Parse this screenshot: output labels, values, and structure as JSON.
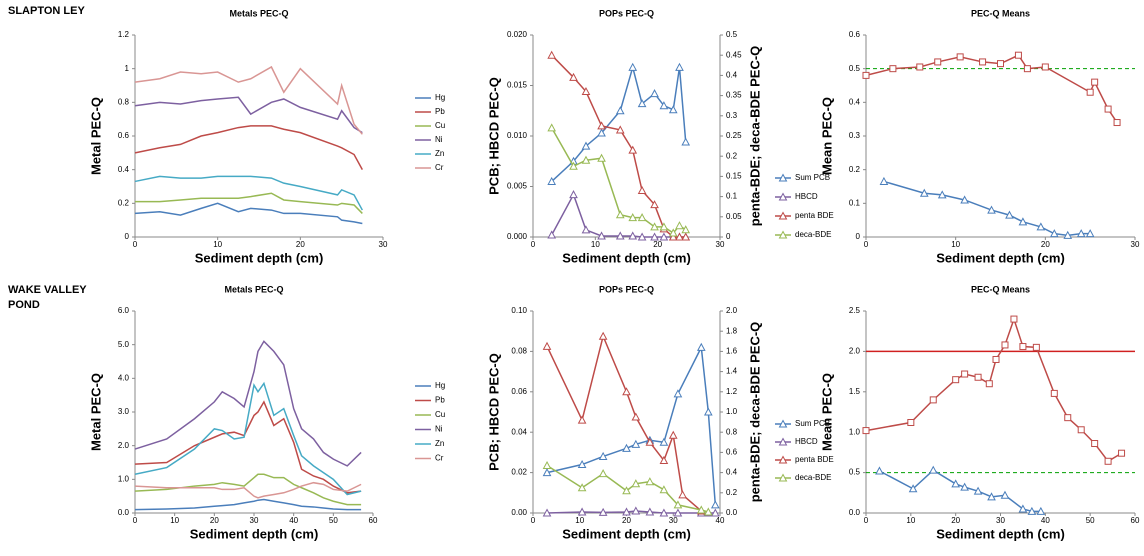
{
  "row_labels": [
    "SLAPTON LEY",
    "WAKE VALLEY POND"
  ],
  "chart_data": [
    {
      "type": "line",
      "title": "Metals PEC-Q",
      "xlabel": "Sediment depth (cm)",
      "ylabel": "Metal PEC-Q",
      "xlim": [
        0,
        30
      ],
      "xticks": [
        0,
        10,
        20,
        30
      ],
      "ylim": [
        0,
        1.2
      ],
      "yticks": [
        0,
        0.2,
        0.4,
        0.6,
        0.8,
        1,
        1.2
      ],
      "x": [
        0,
        3,
        5.5,
        8,
        10,
        12.5,
        14,
        16.5,
        18,
        20,
        24.5,
        25,
        26.5,
        27.5
      ],
      "series": [
        {
          "name": "Hg",
          "color": "#4a7ebb",
          "values": [
            0.14,
            0.15,
            0.13,
            0.17,
            0.2,
            0.15,
            0.17,
            0.16,
            0.14,
            0.14,
            0.12,
            0.1,
            0.09,
            0.08
          ]
        },
        {
          "name": "Pb",
          "color": "#be4b48",
          "values": [
            0.5,
            0.53,
            0.55,
            0.6,
            0.62,
            0.65,
            0.66,
            0.66,
            0.64,
            0.62,
            0.54,
            0.53,
            0.49,
            0.4
          ]
        },
        {
          "name": "Cu",
          "color": "#98b954",
          "values": [
            0.21,
            0.21,
            0.22,
            0.23,
            0.23,
            0.23,
            0.24,
            0.26,
            0.22,
            0.21,
            0.19,
            0.2,
            0.19,
            0.14
          ]
        },
        {
          "name": "Ni",
          "color": "#7d60a0",
          "values": [
            0.78,
            0.8,
            0.79,
            0.81,
            0.82,
            0.83,
            0.73,
            0.8,
            0.82,
            0.77,
            0.7,
            0.75,
            0.65,
            0.62
          ]
        },
        {
          "name": "Zn",
          "color": "#46aac5",
          "values": [
            0.33,
            0.36,
            0.35,
            0.35,
            0.36,
            0.36,
            0.36,
            0.35,
            0.32,
            0.3,
            0.25,
            0.28,
            0.25,
            0.16
          ]
        },
        {
          "name": "Cr",
          "color": "#d99694",
          "values": [
            0.92,
            0.94,
            0.98,
            0.97,
            0.98,
            0.92,
            0.94,
            1.01,
            0.86,
            1.0,
            0.79,
            0.9,
            0.67,
            0.61
          ]
        }
      ]
    },
    {
      "type": "line",
      "title": "POPs PEC-Q",
      "xlabel": "Sediment depth (cm)",
      "ylabel": "PCB; HBCD PEC-Q",
      "y2label": "penta-BDE; deca-BDE  PEC-Q",
      "xlim": [
        0,
        30
      ],
      "xticks": [
        0,
        10,
        20,
        30
      ],
      "ylim": [
        0,
        0.02
      ],
      "yticks": [
        {
          "value": 0,
          "label": "0.000"
        },
        {
          "value": 0.005,
          "label": "0.005"
        },
        {
          "value": 0.01,
          "label": "0.010"
        },
        {
          "value": 0.015,
          "label": "0.015"
        },
        {
          "value": 0.02,
          "label": "0.020"
        }
      ],
      "y2lim": [
        0,
        0.5
      ],
      "y2ticks": [
        0,
        0.05,
        0.1,
        0.15,
        0.2,
        0.25,
        0.3,
        0.35,
        0.4,
        0.45,
        0.5
      ],
      "series": [
        {
          "name": "Sum PCB",
          "color": "#4a7ebb",
          "marker": "triangle",
          "x": [
            3,
            6.5,
            8.5,
            11,
            14,
            16,
            17.5,
            19.5,
            21,
            22.5,
            23.5,
            24.5
          ],
          "values": [
            0.0055,
            0.0075,
            0.009,
            0.0103,
            0.0125,
            0.0168,
            0.0132,
            0.0142,
            0.013,
            0.0126,
            0.0168,
            0.0094
          ]
        },
        {
          "name": "HBCD",
          "color": "#7d60a0",
          "marker": "triangle",
          "x": [
            3,
            6.5,
            8.5,
            11,
            14,
            16,
            17.5,
            19.5,
            21,
            22.5,
            23.5,
            24.5
          ],
          "values": [
            0.0002,
            0.0042,
            0.0007,
            0.0001,
            0.0001,
            0.0001,
            0,
            0,
            0,
            0,
            0,
            0
          ]
        },
        {
          "name": "penta BDE",
          "color": "#be4b48",
          "marker": "triangle",
          "axis": "y2",
          "x": [
            3,
            6.5,
            8.5,
            11,
            14,
            16,
            17.5,
            19.5,
            21,
            22.5,
            23.5,
            24.5
          ],
          "values": [
            0.45,
            0.395,
            0.36,
            0.275,
            0.265,
            0.215,
            0.115,
            0.08,
            0.02,
            0,
            0,
            0
          ]
        },
        {
          "name": "deca-BDE",
          "color": "#98b954",
          "marker": "triangle",
          "axis": "y2",
          "x": [
            3,
            6.5,
            8.5,
            11,
            14,
            16,
            17.5,
            19.5,
            21,
            22.5,
            23.5,
            24.5
          ],
          "values": [
            0.27,
            0.175,
            0.19,
            0.195,
            0.055,
            0.048,
            0.048,
            0.025,
            0.025,
            0.01,
            0.028,
            0.018
          ]
        }
      ]
    },
    {
      "type": "line",
      "title": "PEC-Q Means",
      "xlabel": "Sediment depth (cm)",
      "ylabel": "Mean PEC-Q",
      "xlim": [
        0,
        30
      ],
      "xticks": [
        0,
        10,
        20,
        30
      ],
      "ylim": [
        0,
        0.6
      ],
      "yticks": [
        0,
        0.1,
        0.2,
        0.3,
        0.4,
        0.5,
        0.6
      ],
      "hlines": [
        {
          "value": 0.5,
          "color": "#00a000",
          "dash": true
        }
      ],
      "series": [
        {
          "color": "#be4b48",
          "marker": "square",
          "x": [
            0,
            3,
            6,
            8,
            10.5,
            13,
            15,
            17,
            18,
            20,
            25,
            25.5,
            27,
            28
          ],
          "values": [
            0.48,
            0.5,
            0.505,
            0.52,
            0.535,
            0.52,
            0.515,
            0.54,
            0.5,
            0.505,
            0.43,
            0.46,
            0.38,
            0.34
          ]
        },
        {
          "color": "#4a7ebb",
          "marker": "triangle",
          "x": [
            2,
            6.5,
            8.5,
            11,
            14,
            16,
            17.5,
            19.5,
            21,
            22.5,
            24,
            25
          ],
          "values": [
            0.165,
            0.13,
            0.125,
            0.11,
            0.08,
            0.065,
            0.045,
            0.03,
            0.01,
            0.005,
            0.01,
            0.01
          ]
        }
      ]
    },
    {
      "type": "line",
      "title": "Metals PEC-Q",
      "xlabel": "Sediment depth (cm)",
      "ylabel": "Metal PEC-Q",
      "xlim": [
        0,
        60
      ],
      "xticks": [
        0,
        10,
        20,
        30,
        40,
        50,
        60
      ],
      "ylim": [
        0,
        6
      ],
      "yticks": [
        {
          "value": 0,
          "label": "0.0"
        },
        {
          "value": 1,
          "label": "1.0"
        },
        {
          "value": 2,
          "label": "2.0"
        },
        {
          "value": 3,
          "label": "3.0"
        },
        {
          "value": 4,
          "label": "4.0"
        },
        {
          "value": 5,
          "label": "5.0"
        },
        {
          "value": 6,
          "label": "6.0"
        }
      ],
      "x": [
        0,
        8,
        15,
        20,
        22,
        25,
        27.5,
        30,
        31,
        32.5,
        35,
        37.5,
        40,
        42,
        45,
        47.5,
        50,
        53.5,
        57
      ],
      "series": [
        {
          "name": "Hg",
          "color": "#4a7ebb",
          "values": [
            0.1,
            0.12,
            0.15,
            0.2,
            0.22,
            0.25,
            0.3,
            0.35,
            0.38,
            0.4,
            0.35,
            0.3,
            0.25,
            0.2,
            0.18,
            0.15,
            0.12,
            0.1,
            0.1
          ]
        },
        {
          "name": "Pb",
          "color": "#be4b48",
          "values": [
            1.45,
            1.5,
            2.0,
            2.25,
            2.35,
            2.4,
            2.3,
            2.9,
            3.0,
            3.3,
            2.6,
            2.8,
            2.1,
            1.3,
            1.1,
            1.0,
            0.8,
            0.6,
            0.65
          ]
        },
        {
          "name": "Cu",
          "color": "#98b954",
          "values": [
            0.65,
            0.7,
            0.8,
            0.85,
            0.9,
            0.85,
            0.8,
            1.05,
            1.15,
            1.15,
            1.05,
            1.05,
            0.85,
            0.75,
            0.6,
            0.45,
            0.35,
            0.25,
            0.25
          ]
        },
        {
          "name": "Ni",
          "color": "#7d60a0",
          "values": [
            1.9,
            2.2,
            2.8,
            3.3,
            3.6,
            3.4,
            3.15,
            4.2,
            4.8,
            5.1,
            4.8,
            4.4,
            3.1,
            2.5,
            2.2,
            1.8,
            1.6,
            1.4,
            1.8
          ]
        },
        {
          "name": "Zn",
          "color": "#46aac5",
          "values": [
            1.15,
            1.35,
            1.9,
            2.5,
            2.45,
            2.2,
            2.25,
            3.8,
            3.6,
            3.85,
            2.9,
            3.1,
            2.3,
            1.7,
            1.4,
            1.2,
            1.0,
            0.55,
            0.65
          ]
        },
        {
          "name": "Cr",
          "color": "#d99694",
          "values": [
            0.8,
            0.75,
            0.75,
            0.75,
            0.7,
            0.7,
            0.75,
            0.5,
            0.45,
            0.5,
            0.55,
            0.6,
            0.7,
            0.8,
            0.9,
            0.85,
            0.7,
            0.65,
            0.85
          ]
        }
      ]
    },
    {
      "type": "line",
      "title": "POPs PEC-Q",
      "xlabel": "Sediment depth (cm)",
      "ylabel": "PCB; HBCD PEC-Q",
      "y2label": "penta-BDE; deca-BDE  PEC-Q",
      "xlim": [
        0,
        40
      ],
      "xticks": [
        0,
        10,
        20,
        30,
        40
      ],
      "ylim": [
        0,
        0.1
      ],
      "yticks": [
        {
          "value": 0,
          "label": "0.00"
        },
        {
          "value": 0.02,
          "label": "0.02"
        },
        {
          "value": 0.04,
          "label": "0.04"
        },
        {
          "value": 0.06,
          "label": "0.06"
        },
        {
          "value": 0.08,
          "label": "0.08"
        },
        {
          "value": 0.1,
          "label": "0.10"
        }
      ],
      "y2lim": [
        0,
        2
      ],
      "y2ticks": [
        {
          "value": 0,
          "label": "0.0"
        },
        0.2,
        0.4,
        0.6,
        0.8,
        {
          "value": 1,
          "label": "1.0"
        },
        1.2,
        1.4,
        1.6,
        1.8,
        {
          "value": 2,
          "label": "2.0"
        }
      ],
      "series": [
        {
          "name": "Sum PCB",
          "color": "#4a7ebb",
          "marker": "triangle",
          "x": [
            3,
            10.5,
            15,
            20,
            22,
            25,
            28,
            31,
            36,
            37.5,
            39
          ],
          "values": [
            0.02,
            0.024,
            0.028,
            0.032,
            0.034,
            0.036,
            0.035,
            0.059,
            0.082,
            0.05,
            0.004
          ]
        },
        {
          "name": "HBCD",
          "color": "#7d60a0",
          "marker": "triangle",
          "x": [
            3,
            10.5,
            15,
            20,
            22,
            25,
            28,
            31,
            36,
            37.5,
            39
          ],
          "values": [
            0,
            0.0005,
            0.0003,
            0.0005,
            0.001,
            0.0005,
            0,
            0,
            0,
            0,
            0
          ]
        },
        {
          "name": "penta BDE",
          "color": "#be4b48",
          "marker": "triangle",
          "axis": "y2",
          "x": [
            3,
            10.5,
            15,
            20,
            22,
            25,
            28,
            30,
            32,
            36
          ],
          "values": [
            1.65,
            0.92,
            1.75,
            1.2,
            0.95,
            0.7,
            0.52,
            0.77,
            0.18,
            0.02
          ]
        },
        {
          "name": "deca-BDE",
          "color": "#98b954",
          "marker": "triangle",
          "axis": "y2",
          "x": [
            3,
            10.5,
            15,
            20,
            22,
            25,
            28,
            31,
            36,
            37.5
          ],
          "values": [
            0.47,
            0.25,
            0.39,
            0.22,
            0.29,
            0.31,
            0.23,
            0.08,
            0.03,
            0.01
          ]
        }
      ]
    },
    {
      "type": "line",
      "title": "PEC-Q Means",
      "xlabel": "Sediment depth (cm)",
      "ylabel": "Mean PEC-Q",
      "xlim": [
        0,
        60
      ],
      "xticks": [
        0,
        10,
        20,
        30,
        40,
        50,
        60
      ],
      "ylim": [
        0,
        2.5
      ],
      "yticks": [
        {
          "value": 0,
          "label": "0.0"
        },
        0.5,
        {
          "value": 1,
          "label": "1.0"
        },
        1.5,
        {
          "value": 2,
          "label": "2.0"
        },
        2.5
      ],
      "hlines": [
        {
          "value": 2,
          "color": "#d02020",
          "dash": false
        },
        {
          "value": 0.5,
          "color": "#00a000",
          "dash": true
        }
      ],
      "series": [
        {
          "color": "#be4b48",
          "marker": "square",
          "x": [
            0,
            10,
            15,
            20,
            22,
            25,
            27.5,
            29,
            31,
            33,
            35,
            38,
            42,
            45,
            48,
            51,
            54,
            57
          ],
          "values": [
            1.02,
            1.12,
            1.4,
            1.65,
            1.72,
            1.68,
            1.6,
            1.9,
            2.08,
            2.4,
            2.06,
            2.05,
            1.48,
            1.18,
            1.03,
            0.86,
            0.64,
            0.74
          ]
        },
        {
          "color": "#4a7ebb",
          "marker": "triangle",
          "x": [
            3,
            10.5,
            15,
            20,
            22,
            25,
            28,
            31,
            35,
            37,
            39
          ],
          "values": [
            0.52,
            0.3,
            0.53,
            0.36,
            0.32,
            0.27,
            0.2,
            0.22,
            0.05,
            0.02,
            0.02
          ]
        }
      ]
    }
  ]
}
